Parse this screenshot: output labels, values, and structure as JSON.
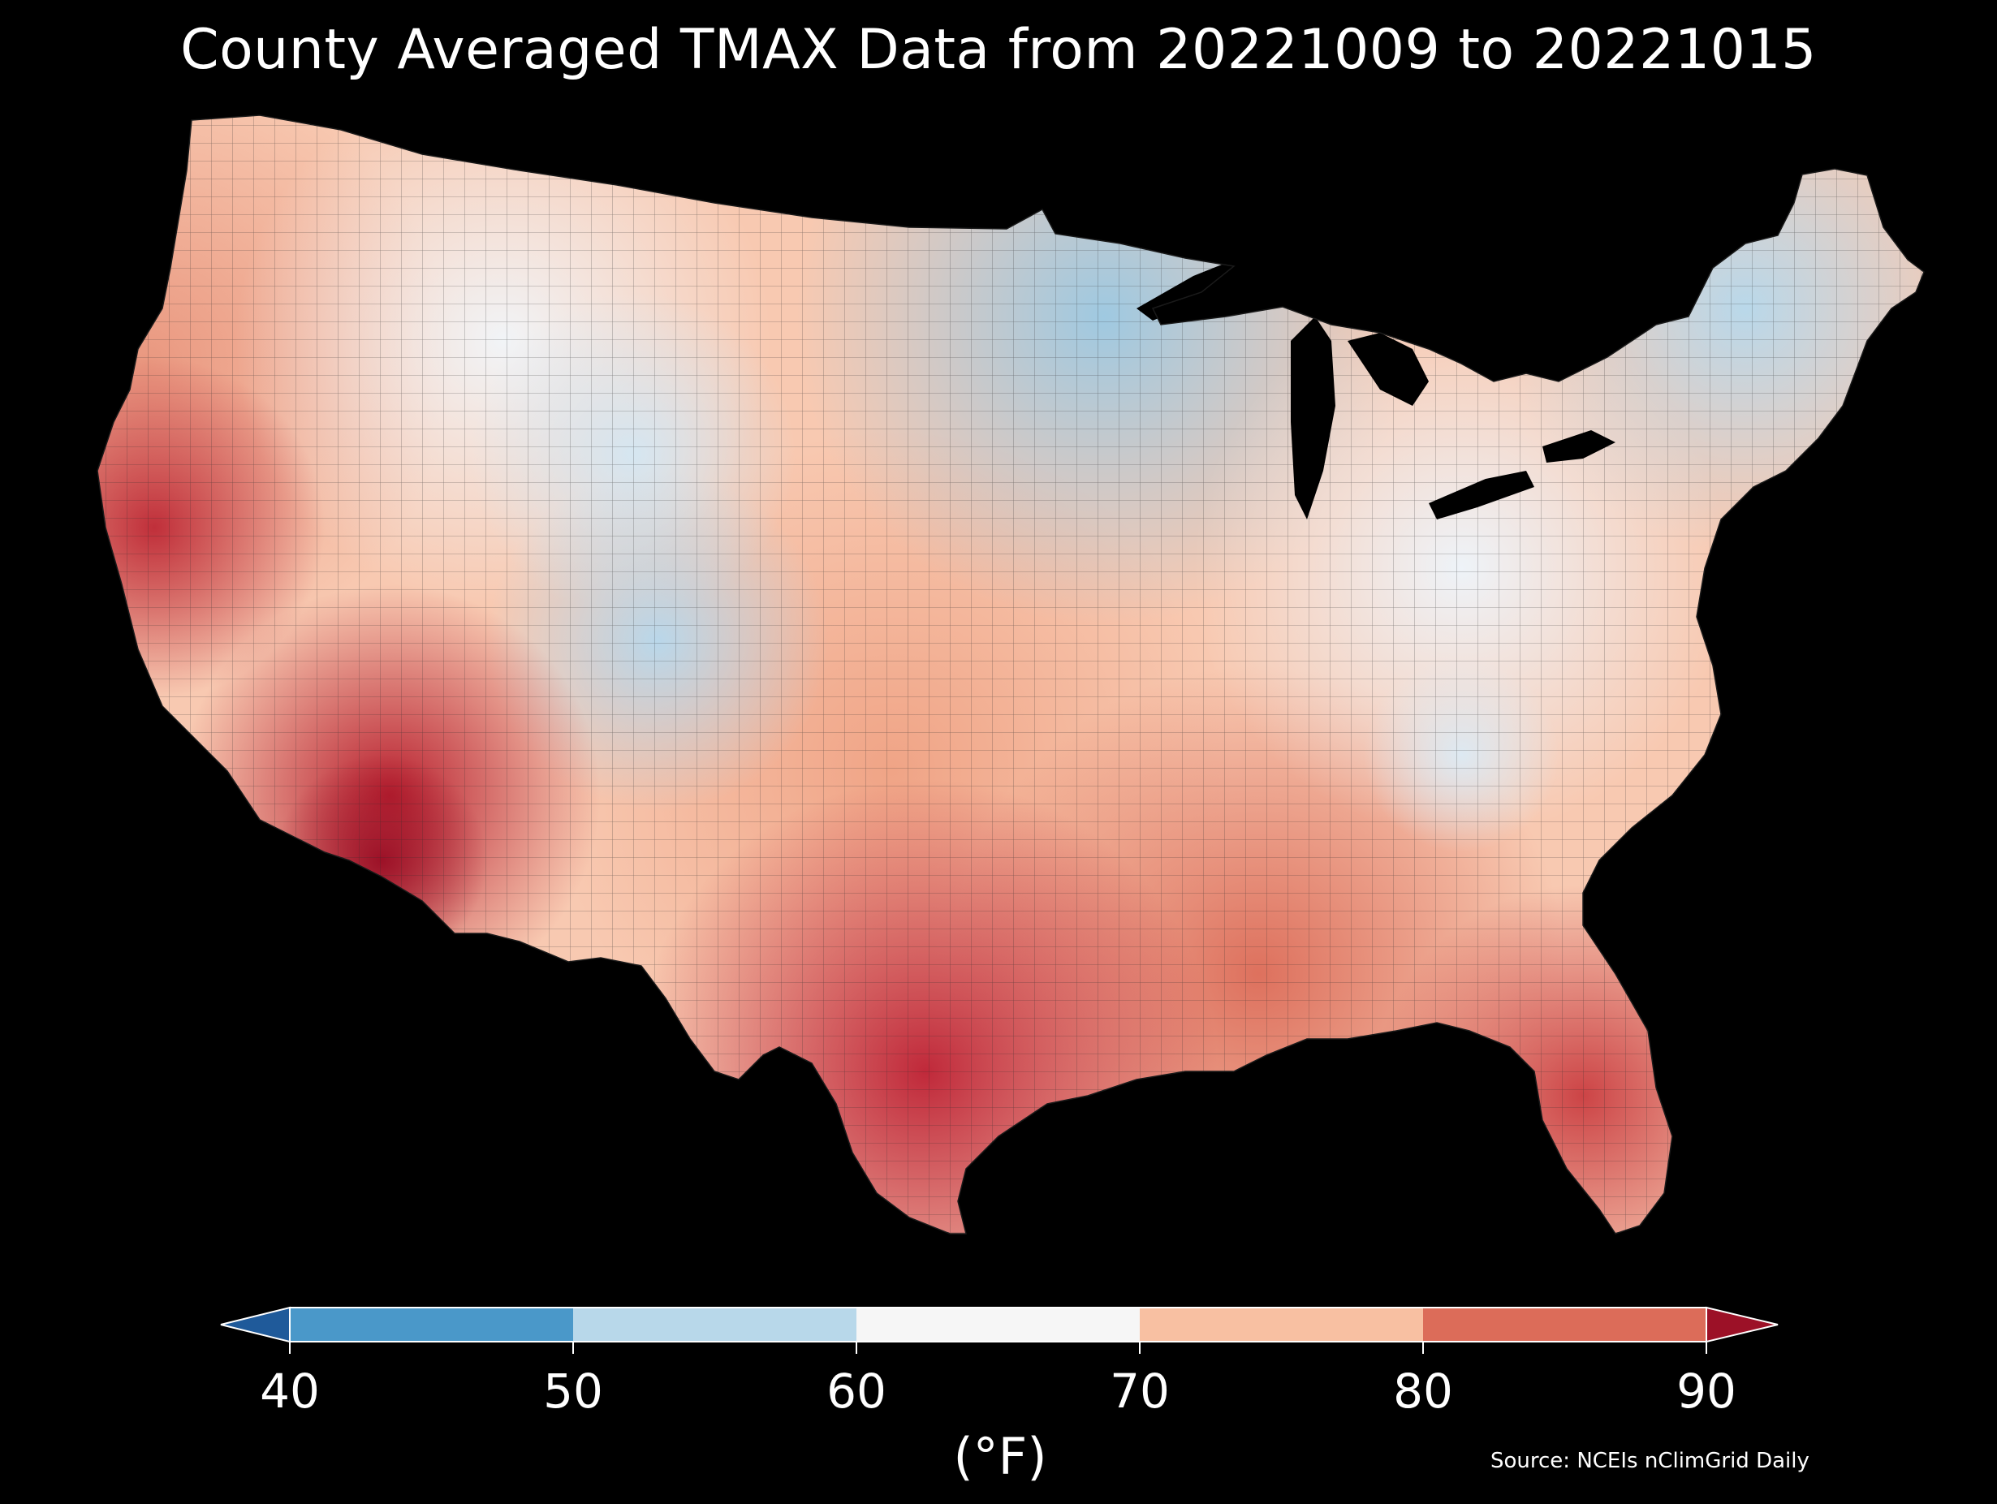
{
  "title": "County Averaged TMAX Data from 20221009 to 20221015",
  "colorbar": {
    "ticks": [
      "40",
      "50",
      "60",
      "70",
      "80",
      "90"
    ],
    "unit": "(°F)",
    "bins": [
      {
        "range": "<40",
        "color": "#1f5a9a"
      },
      {
        "range": "40-50",
        "color": "#4a98c9"
      },
      {
        "range": "50-60",
        "color": "#b8d8ea"
      },
      {
        "range": "60-70",
        "color": "#f6f6f6"
      },
      {
        "range": "70-80",
        "color": "#f8c0a2"
      },
      {
        "range": "80-90",
        "color": "#dc6c59"
      },
      {
        "range": ">90",
        "color": "#9c1127"
      }
    ]
  },
  "source": "Source: NCEIs nClimGrid Daily",
  "map_regions": [
    {
      "region": "Pacific Northwest coast",
      "tmax_range": "70-80",
      "color": "#e8927a"
    },
    {
      "region": "Northern Rockies / Montana",
      "tmax_range": "60-70",
      "color": "#f1f3f5"
    },
    {
      "region": "Colorado Rockies",
      "tmax_range": "50-60",
      "color": "#c8dfee"
    },
    {
      "region": "Upper Midwest / Minnesota",
      "tmax_range": "50-60",
      "color": "#a9cfe4"
    },
    {
      "region": "New England",
      "tmax_range": "50-60",
      "color": "#c2dcec"
    },
    {
      "region": "Ohio Valley / Appalachians",
      "tmax_range": "60-70",
      "color": "#eef3f7"
    },
    {
      "region": "Central Plains",
      "tmax_range": "70-80",
      "color": "#f4b596"
    },
    {
      "region": "California Central Valley",
      "tmax_range": "80-90",
      "color": "#c93a3f"
    },
    {
      "region": "Southern Arizona",
      "tmax_range": ">90",
      "color": "#9c1127"
    },
    {
      "region": "South Texas",
      "tmax_range": "80-90",
      "color": "#c42f38"
    },
    {
      "region": "Gulf Coast",
      "tmax_range": "80-90",
      "color": "#d65a4d"
    },
    {
      "region": "Florida",
      "tmax_range": "80-90",
      "color": "#d2514a"
    }
  ]
}
